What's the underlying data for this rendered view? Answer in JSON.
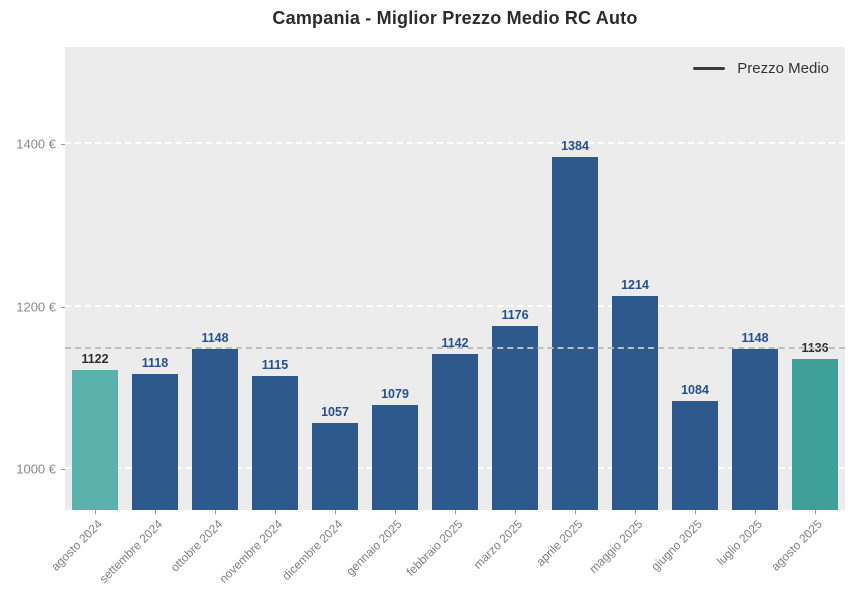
{
  "title": "Campania - Miglior Prezzo Medio RC Auto",
  "legend": {
    "label": "Prezzo Medio"
  },
  "chart_data": {
    "type": "bar",
    "title": "Campania - Miglior Prezzo Medio RC Auto",
    "categories": [
      "agosto 2024",
      "settembre 2024",
      "ottobre 2024",
      "novembre 2024",
      "dicembre 2024",
      "gennaio 2025",
      "febbraio 2025",
      "marzo 2025",
      "aprile 2025",
      "maggio 2025",
      "giugno 2025",
      "luglio 2025",
      "agosto 2025"
    ],
    "values": [
      1122,
      1118,
      1148,
      1115,
      1057,
      1079,
      1142,
      1176,
      1384,
      1214,
      1084,
      1148,
      1136
    ],
    "series_name": "Prezzo Medio",
    "xlabel": "",
    "ylabel": "",
    "y_ticks": [
      {
        "value": 1000,
        "label": "1000 €"
      },
      {
        "value": 1200,
        "label": "1200 €"
      },
      {
        "value": 1400,
        "label": "1400 €"
      }
    ],
    "ylim": [
      950,
      1520
    ],
    "average_line_value": 1148,
    "highlighted_indices": [
      0,
      12
    ],
    "grid": "horizontal dashed white, below bars",
    "legend_position": "top-right inside plot"
  },
  "colors": {
    "page_bg": "#ffffff",
    "plot_bg": "#ececec",
    "bar_default": "#2e598c",
    "bar_highlight_first": "#5bb2ac",
    "bar_highlight_last": "#3fa09a",
    "value_label_default": "#25508e",
    "value_label_highlight": "#2e2e2e",
    "gridline": "#ffffff",
    "average_line": "#bdbdbd",
    "axis_text": "#7f7f7f",
    "legend_line": "#3a3a3a",
    "title_text": "#2b2b2b"
  }
}
